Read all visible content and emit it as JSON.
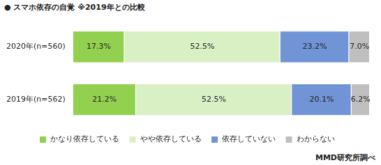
{
  "chart_data": {
    "type": "bar",
    "title": "● スマホ依存の自覚 ※2019年との比較",
    "annotations": [
      "MMD研究所調べ"
    ],
    "orientation": "horizontal",
    "stacked": true,
    "grid": false,
    "legend": "bottom",
    "data_labels": true,
    "tick_labels": "y",
    "xlim": [
      0,
      100
    ],
    "categories": [
      "2020年(n=560)",
      "2019年(n=562)"
    ],
    "series": [
      {
        "name": "かなり依存している",
        "color": "#92d050",
        "values": [
          17.3,
          21.2
        ],
        "value_labels": [
          "17.3%",
          "21.2%"
        ]
      },
      {
        "name": "やや依存している",
        "color": "#d8f0c4",
        "values": [
          52.5,
          52.5
        ],
        "value_labels": [
          "52.5%",
          "52.5%"
        ]
      },
      {
        "name": "依存していない",
        "color": "#7094d6",
        "values": [
          23.2,
          20.1
        ],
        "value_labels": [
          "23.2%",
          "20.1%"
        ]
      },
      {
        "name": "わからない",
        "color": "#bfbfbf",
        "values": [
          7,
          6.2
        ],
        "value_labels": [
          "7.0%",
          "6.2%"
        ]
      }
    ]
  }
}
